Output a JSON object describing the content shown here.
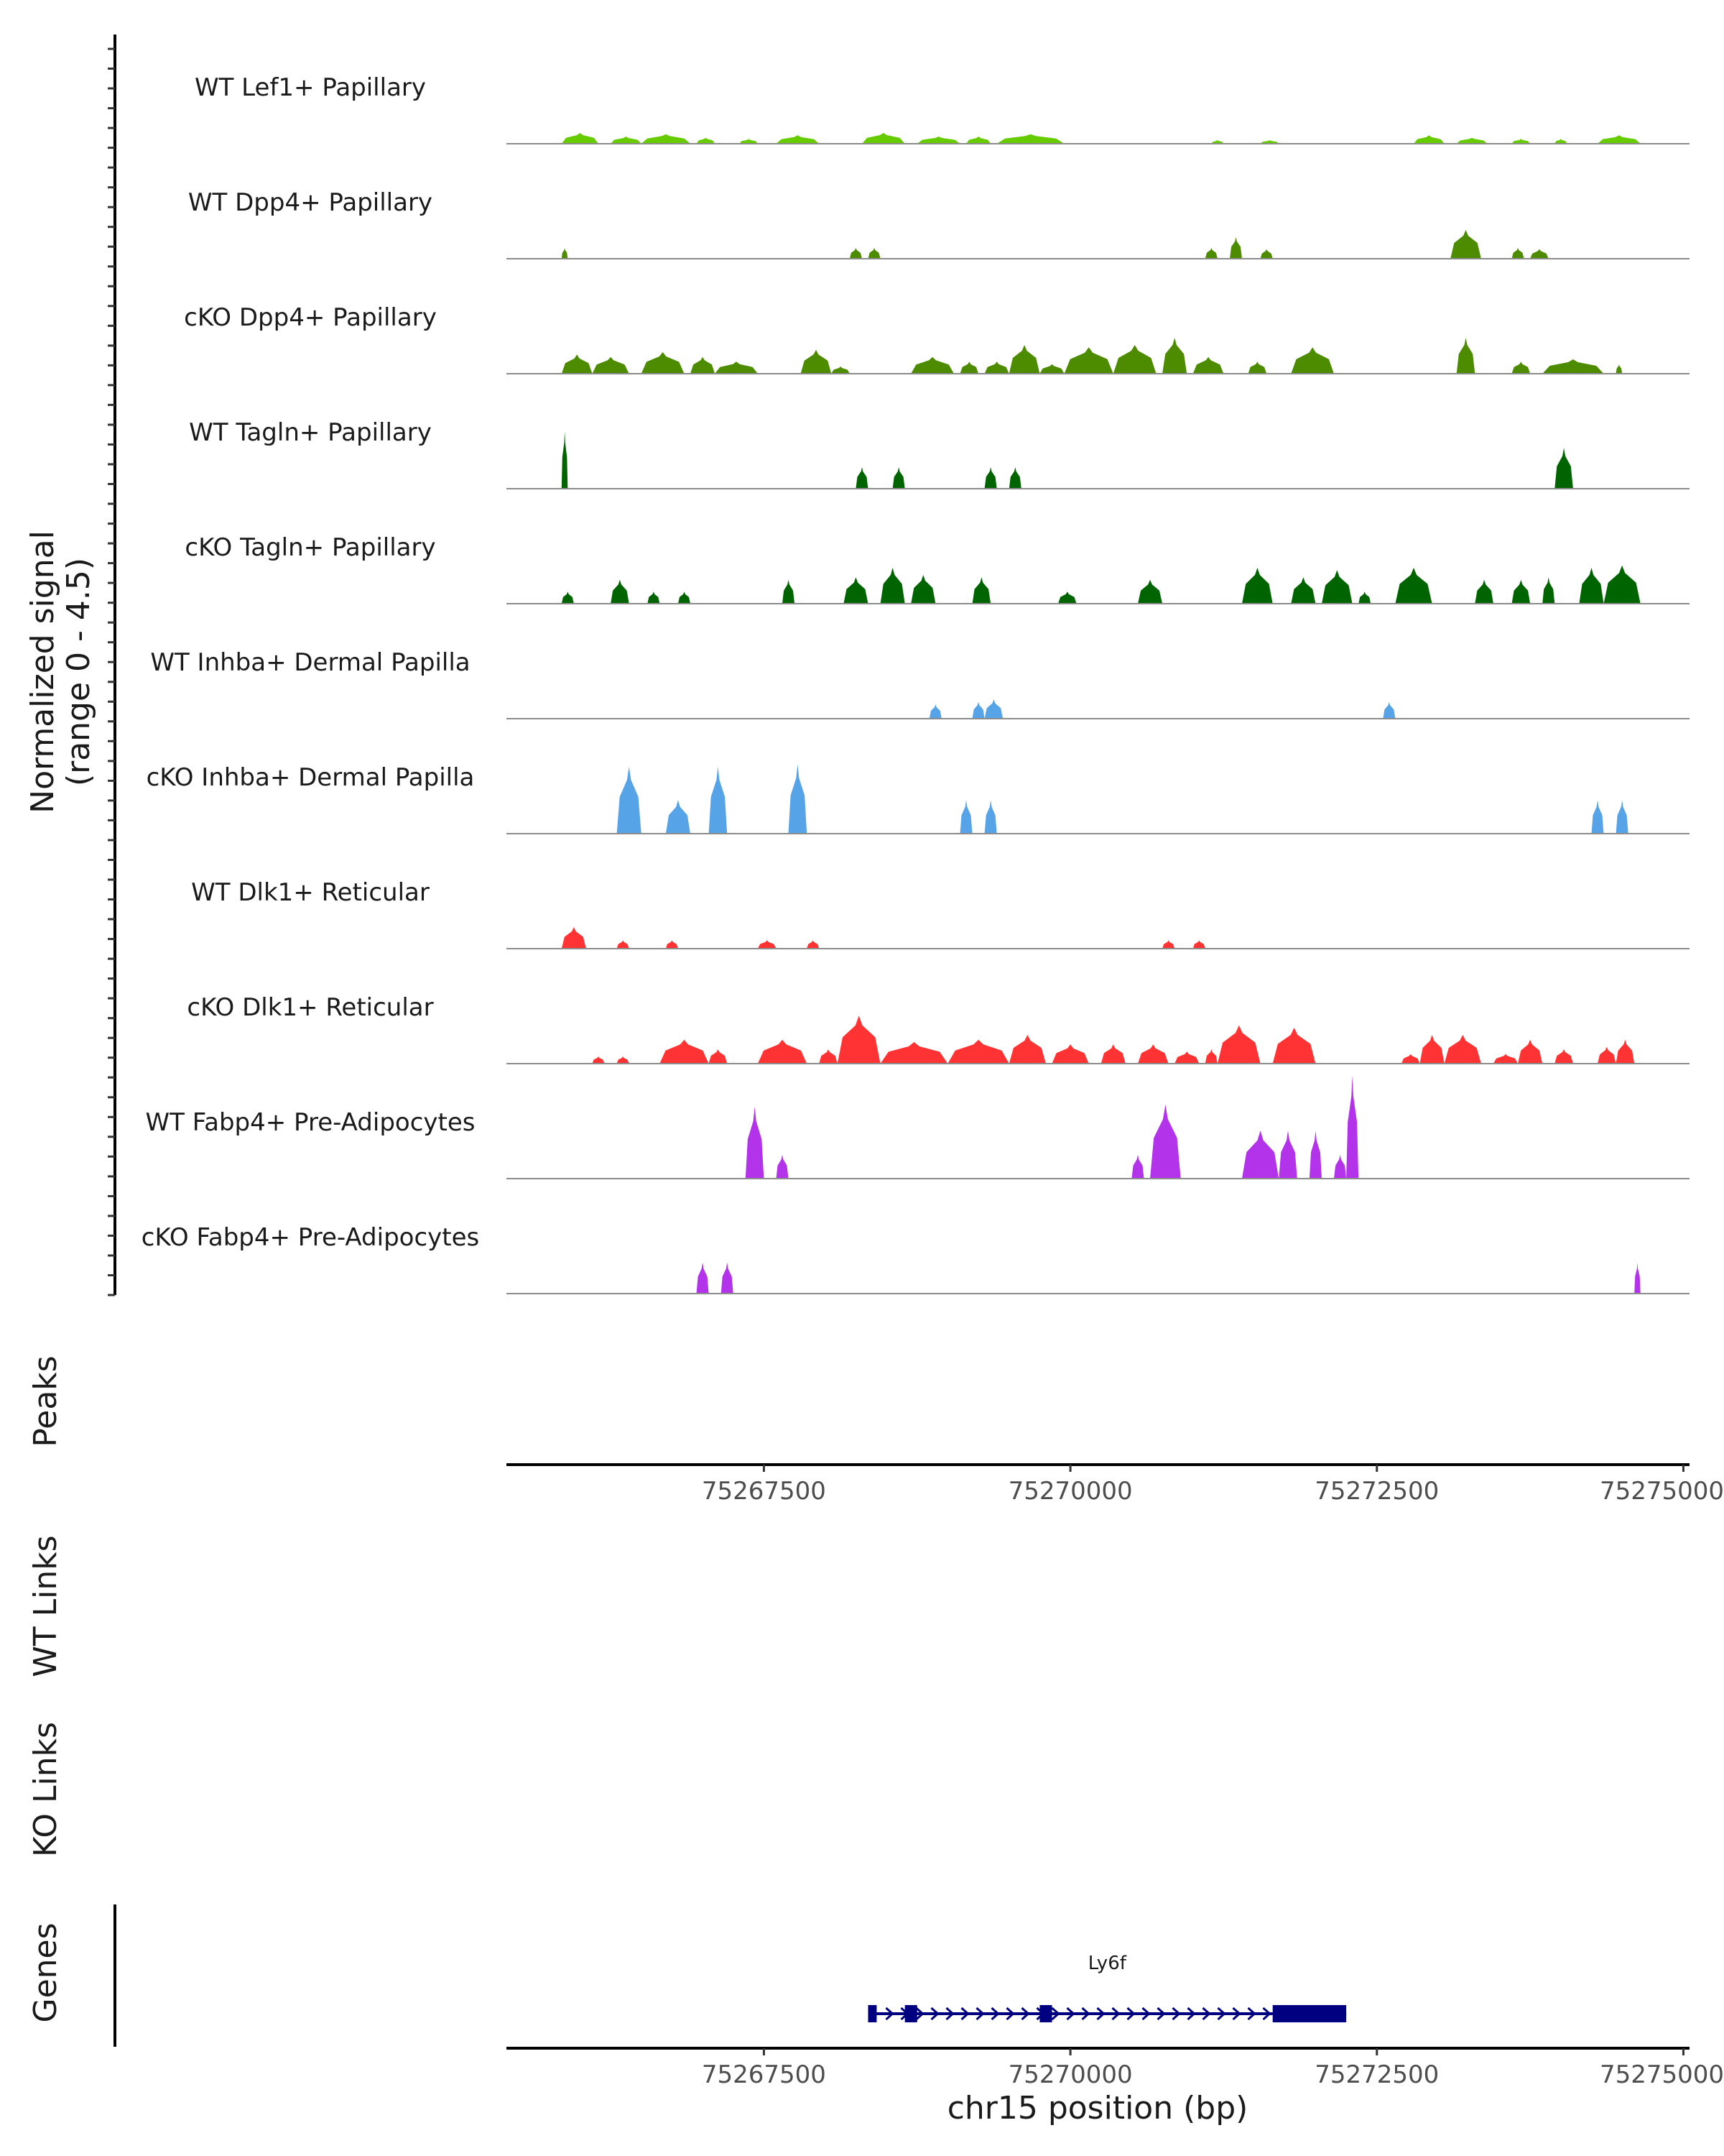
{
  "chart_data": {
    "type": "area",
    "title": "",
    "xlabel": "chr15 position (bp)",
    "xlim": [
      75265400,
      75275050
    ],
    "xticks": [
      75267500,
      75270000,
      75272500,
      75275000
    ],
    "xtick_labels": [
      "75267500",
      "75270000",
      "75272500",
      "75275000"
    ],
    "ylabel_line1": "Normalized signal",
    "ylabel_line2": "(range 0 - 4.5)",
    "ylim": [
      0,
      4.5
    ],
    "panel_labels": {
      "peaks": "Peaks",
      "wt_links": "WT Links",
      "ko_links": "KO Links",
      "genes": "Genes"
    },
    "tracks": [
      {
        "name": "WT Lef1+ Papillary",
        "color": "#66cc00",
        "regions": [
          [
            75265850,
            75266150,
            0.45
          ],
          [
            75266250,
            75266500,
            0.3
          ],
          [
            75266500,
            75266900,
            0.4
          ],
          [
            75266950,
            75267100,
            0.25
          ],
          [
            75267300,
            75267450,
            0.2
          ],
          [
            75267600,
            75267950,
            0.35
          ],
          [
            75268300,
            75268650,
            0.45
          ],
          [
            75268750,
            75269100,
            0.3
          ],
          [
            75269150,
            75269350,
            0.3
          ],
          [
            75269400,
            75269950,
            0.4
          ],
          [
            75271150,
            75271250,
            0.15
          ],
          [
            75271550,
            75271700,
            0.15
          ],
          [
            75272800,
            75273050,
            0.35
          ],
          [
            75273150,
            75273400,
            0.25
          ],
          [
            75273600,
            75273750,
            0.2
          ],
          [
            75273950,
            75274050,
            0.2
          ],
          [
            75274300,
            75274650,
            0.35
          ]
        ]
      },
      {
        "name": "WT Dpp4+ Papillary",
        "color": "#4d8c00",
        "regions": [
          [
            75265850,
            75265900,
            0.45
          ],
          [
            75268200,
            75268300,
            0.45
          ],
          [
            75268350,
            75268450,
            0.45
          ],
          [
            75271100,
            75271200,
            0.45
          ],
          [
            75271300,
            75271400,
            0.9
          ],
          [
            75271550,
            75271650,
            0.4
          ],
          [
            75273100,
            75273350,
            1.2
          ],
          [
            75273600,
            75273700,
            0.45
          ],
          [
            75273750,
            75273900,
            0.4
          ]
        ]
      },
      {
        "name": "cKO Dpp4+ Papillary",
        "color": "#4d8c00",
        "regions": [
          [
            75265850,
            75266100,
            0.8
          ],
          [
            75266100,
            75266400,
            0.7
          ],
          [
            75266500,
            75266850,
            0.9
          ],
          [
            75266900,
            75267100,
            0.7
          ],
          [
            75267100,
            75267450,
            0.5
          ],
          [
            75267800,
            75268050,
            1.0
          ],
          [
            75268050,
            75268200,
            0.3
          ],
          [
            75268700,
            75269050,
            0.7
          ],
          [
            75269100,
            75269250,
            0.5
          ],
          [
            75269300,
            75269500,
            0.5
          ],
          [
            75269500,
            75269750,
            1.2
          ],
          [
            75269750,
            75269950,
            0.4
          ],
          [
            75269950,
            75270350,
            1.1
          ],
          [
            75270350,
            75270700,
            1.2
          ],
          [
            75270750,
            75270950,
            1.5
          ],
          [
            75271000,
            75271250,
            0.7
          ],
          [
            75271450,
            75271600,
            0.5
          ],
          [
            75271800,
            75272150,
            1.1
          ],
          [
            75273150,
            75273300,
            1.5
          ],
          [
            75273600,
            75273750,
            0.5
          ],
          [
            75273850,
            75274350,
            0.6
          ],
          [
            75274450,
            75274500,
            0.4
          ]
        ]
      },
      {
        "name": "WT Tagln+ Papillary",
        "color": "#006400",
        "regions": [
          [
            75265850,
            75265900,
            2.4
          ],
          [
            75268250,
            75268350,
            0.9
          ],
          [
            75268550,
            75268650,
            0.9
          ],
          [
            75269300,
            75269400,
            0.9
          ],
          [
            75269500,
            75269600,
            0.9
          ],
          [
            75273950,
            75274100,
            1.7
          ]
        ]
      },
      {
        "name": "cKO Tagln+ Papillary",
        "color": "#006400",
        "regions": [
          [
            75265850,
            75265950,
            0.5
          ],
          [
            75266250,
            75266400,
            1.0
          ],
          [
            75266550,
            75266650,
            0.5
          ],
          [
            75266800,
            75266900,
            0.5
          ],
          [
            75267650,
            75267750,
            1.0
          ],
          [
            75268150,
            75268350,
            1.1
          ],
          [
            75268450,
            75268650,
            1.5
          ],
          [
            75268700,
            75268900,
            1.2
          ],
          [
            75269200,
            75269350,
            1.1
          ],
          [
            75269900,
            75270050,
            0.5
          ],
          [
            75270550,
            75270750,
            1.0
          ],
          [
            75271400,
            75271650,
            1.5
          ],
          [
            75271800,
            75272000,
            1.1
          ],
          [
            75272050,
            75272300,
            1.4
          ],
          [
            75272350,
            75272450,
            0.5
          ],
          [
            75272650,
            75272950,
            1.5
          ],
          [
            75273300,
            75273450,
            1.0
          ],
          [
            75273600,
            75273750,
            1.0
          ],
          [
            75273850,
            75273950,
            1.1
          ],
          [
            75274150,
            75274350,
            1.5
          ],
          [
            75274350,
            75274650,
            1.6
          ]
        ]
      },
      {
        "name": "WT Inhba+ Dermal Papilla",
        "color": "#56a3e8",
        "regions": [
          [
            75268850,
            75268950,
            0.6
          ],
          [
            75269200,
            75269300,
            0.7
          ],
          [
            75269300,
            75269450,
            0.8
          ],
          [
            75272550,
            75272650,
            0.7
          ]
        ]
      },
      {
        "name": "cKO Inhba+ Dermal Papilla",
        "color": "#56a3e8",
        "regions": [
          [
            75266300,
            75266500,
            2.8
          ],
          [
            75266700,
            75266900,
            1.4
          ],
          [
            75267050,
            75267200,
            2.8
          ],
          [
            75267700,
            75267850,
            2.9
          ],
          [
            75269100,
            75269200,
            1.4
          ],
          [
            75269300,
            75269400,
            1.4
          ],
          [
            75274250,
            75274350,
            1.4
          ],
          [
            75274450,
            75274550,
            1.4
          ]
        ]
      },
      {
        "name": "WT Dlk1+ Reticular",
        "color": "#ff3333",
        "regions": [
          [
            75265850,
            75266050,
            0.9
          ],
          [
            75266300,
            75266400,
            0.35
          ],
          [
            75266700,
            75266800,
            0.35
          ],
          [
            75267450,
            75267600,
            0.35
          ],
          [
            75267850,
            75267950,
            0.35
          ],
          [
            75270750,
            75270850,
            0.35
          ],
          [
            75271000,
            75271100,
            0.35
          ]
        ]
      },
      {
        "name": "cKO Dlk1+ Reticular",
        "color": "#ff3333",
        "regions": [
          [
            75266100,
            75266200,
            0.3
          ],
          [
            75266300,
            75266400,
            0.3
          ],
          [
            75266650,
            75267050,
            1.0
          ],
          [
            75267050,
            75267200,
            0.6
          ],
          [
            75267450,
            75267850,
            1.0
          ],
          [
            75267950,
            75268100,
            0.6
          ],
          [
            75268100,
            75268450,
            2.0
          ],
          [
            75268450,
            75269000,
            0.9
          ],
          [
            75269000,
            75269500,
            1.0
          ],
          [
            75269500,
            75269800,
            1.2
          ],
          [
            75269850,
            75270150,
            0.8
          ],
          [
            75270250,
            75270450,
            0.8
          ],
          [
            75270550,
            75270800,
            0.8
          ],
          [
            75270850,
            75271050,
            0.5
          ],
          [
            75271100,
            75271200,
            0.6
          ],
          [
            75271200,
            75271550,
            1.6
          ],
          [
            75271650,
            75272000,
            1.5
          ],
          [
            75272700,
            75272850,
            0.4
          ],
          [
            75272850,
            75273050,
            1.2
          ],
          [
            75273050,
            75273350,
            1.2
          ],
          [
            75273450,
            75273650,
            0.4
          ],
          [
            75273650,
            75273850,
            1.0
          ],
          [
            75273950,
            75274100,
            0.6
          ],
          [
            75274300,
            75274450,
            0.7
          ],
          [
            75274450,
            75274600,
            1.0
          ]
        ]
      },
      {
        "name": "WT Fabp4+ Pre-Adipocytes",
        "color": "#b233ea",
        "regions": [
          [
            75267350,
            75267500,
            3.0
          ],
          [
            75267600,
            75267700,
            1.0
          ],
          [
            75270500,
            75270600,
            1.0
          ],
          [
            75270650,
            75270900,
            3.1
          ],
          [
            75271400,
            75271700,
            2.0
          ],
          [
            75271700,
            75271850,
            2.0
          ],
          [
            75271950,
            75272050,
            2.0
          ],
          [
            75272150,
            75272250,
            1.0
          ],
          [
            75272250,
            75272350,
            4.3
          ]
        ]
      },
      {
        "name": "cKO Fabp4+ Pre-Adipocytes",
        "color": "#b233ea",
        "regions": [
          [
            75266950,
            75267050,
            1.3
          ],
          [
            75267150,
            75267250,
            1.3
          ],
          [
            75274600,
            75274650,
            1.3
          ]
        ]
      }
    ],
    "gene": {
      "name": "Ly6f",
      "color": "#000080",
      "start": 75268350,
      "end": 75272250,
      "exons": [
        [
          75268350,
          75268420
        ],
        [
          75268650,
          75268750
        ],
        [
          75269750,
          75269850
        ],
        [
          75271650,
          75272250
        ]
      ]
    }
  }
}
